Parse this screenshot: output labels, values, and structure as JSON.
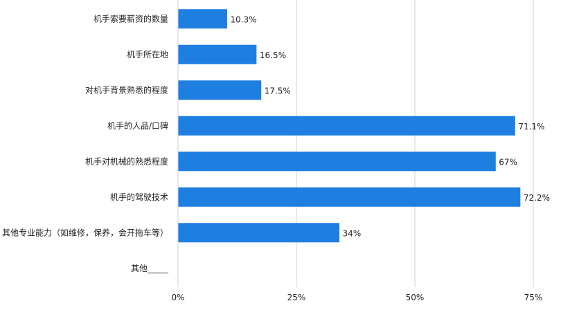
{
  "chart_data": {
    "type": "bar",
    "orientation": "horizontal",
    "categories": [
      "机手索要薪资的数量",
      "机手所在地",
      "对机手背景熟悉的程度",
      "机手的人品/口碑",
      "机手对机械的熟悉程度",
      "机手的驾驶技术",
      "其他专业能力（如维修，保养，会开拖车等）",
      "其他_____"
    ],
    "values": [
      10.3,
      16.5,
      17.5,
      71.1,
      67,
      72.2,
      34,
      0
    ],
    "value_labels": [
      "10.3%",
      "16.5%",
      "17.5%",
      "71.1%",
      "67%",
      "72.2%",
      "34%",
      ""
    ],
    "xlim": [
      0,
      75
    ],
    "xticks": [
      0,
      25,
      50,
      75
    ],
    "xtick_labels": [
      "0%",
      "25%",
      "50%",
      "75%"
    ],
    "title": "",
    "xlabel": "",
    "ylabel": "",
    "grid": "vertical",
    "legend": "none",
    "bar_color": "#1f7fe0",
    "grid_color": "#c9d3dd"
  }
}
